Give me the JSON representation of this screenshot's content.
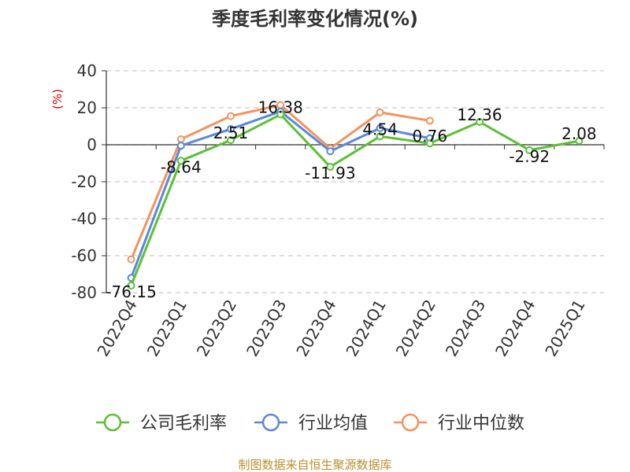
{
  "chart_data": {
    "type": "line",
    "title": "季度毛利率变化情况(%)",
    "unit_label": "(%)",
    "categories": [
      "2022Q4",
      "2023Q1",
      "2023Q2",
      "2023Q3",
      "2023Q4",
      "2024Q1",
      "2024Q2",
      "2024Q3",
      "2024Q4",
      "2025Q1"
    ],
    "y_ticks": [
      "40",
      "20",
      "0",
      "-20",
      "-40",
      "-60",
      "-80"
    ],
    "ylim": [
      -80,
      40
    ],
    "grid": true,
    "legend_position": "bottom",
    "series": [
      {
        "name": "公司毛利率",
        "color": "#5ac134",
        "values": [
          -76.15,
          -8.64,
          2.51,
          16.38,
          -11.93,
          4.54,
          0.76,
          12.36,
          -2.92,
          2.08
        ],
        "labels": [
          "-76.15",
          "-8.64",
          "2.51",
          "16.38",
          "-11.93",
          "4.54",
          "0.76",
          "12.36",
          "-2.92",
          "2.08"
        ]
      },
      {
        "name": "行业均值",
        "color": "#5b87dc",
        "values": [
          -72.0,
          -0.5,
          8.5,
          18.0,
          -3.5,
          9.0,
          3.5,
          null,
          null,
          null
        ]
      },
      {
        "name": "行业中位数",
        "color": "#f4925d",
        "values": [
          -62.0,
          3.0,
          15.5,
          21.5,
          -2.0,
          17.5,
          13.0,
          null,
          null,
          null
        ]
      }
    ]
  },
  "source": "制图数据来自恒生聚源数据库"
}
